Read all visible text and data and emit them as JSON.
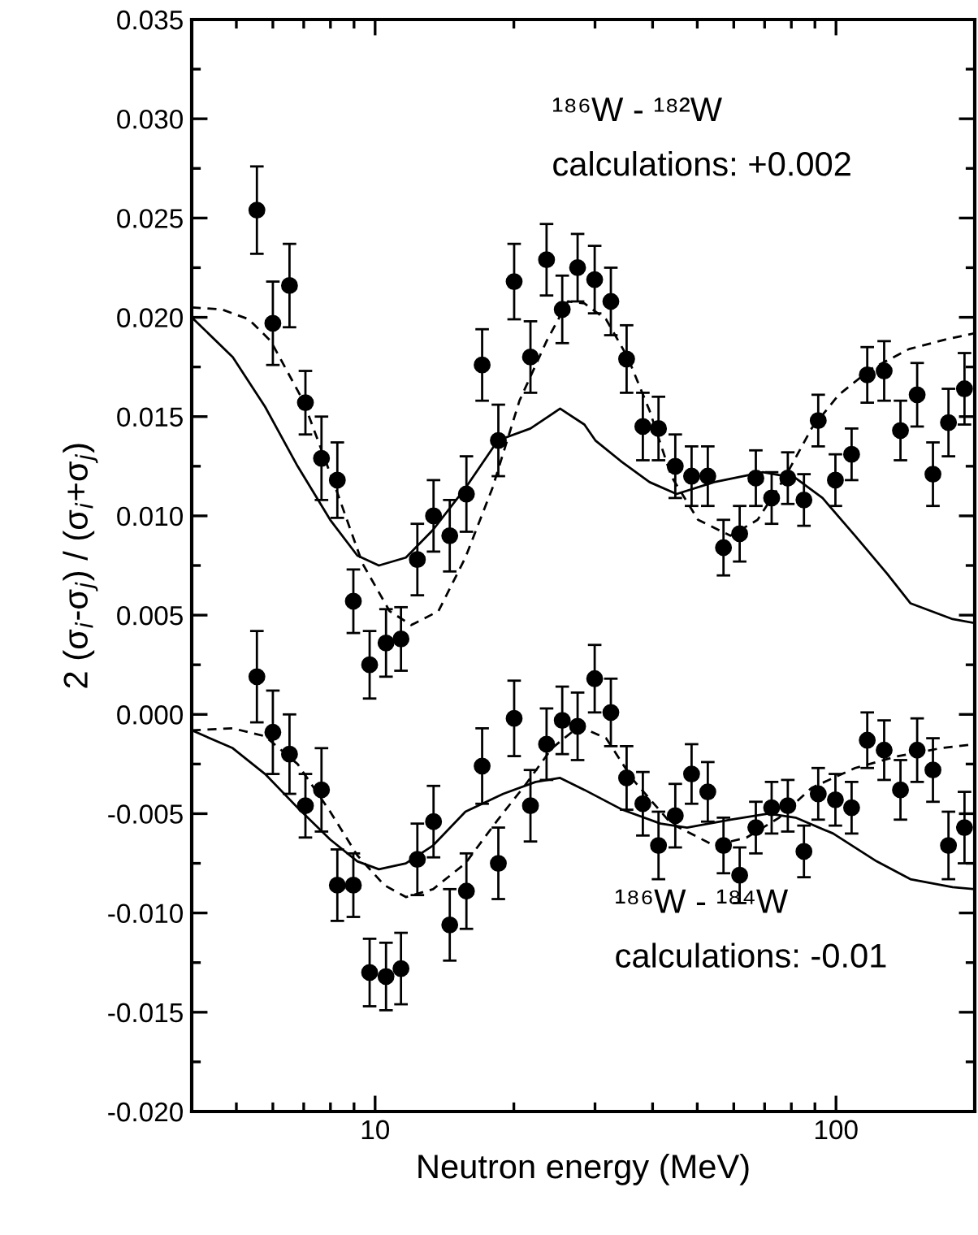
{
  "chart_data": {
    "type": "scatter",
    "xlabel": "Neutron energy (MeV)",
    "ylabel": "2 (σ$_{i}$-σ$_{j}$) / (σ$_{i}$+σ$_{j}$)",
    "log": "x",
    "xlim": [
      4,
      200
    ],
    "xticks": [
      10,
      100
    ],
    "ylim": [
      -0.02,
      0.035
    ],
    "yticks": [
      {
        "value": -0.02,
        "label": "-0.020"
      },
      {
        "value": -0.015,
        "label": "-0.015"
      },
      {
        "value": -0.01,
        "label": "-0.010"
      },
      {
        "value": -0.005,
        "label": "-0.005"
      },
      {
        "value": 0,
        "label": "0.000"
      },
      {
        "value": 0.005,
        "label": "0.005"
      },
      {
        "value": 0.01,
        "label": "0.010"
      },
      {
        "value": 0.015,
        "label": "0.015"
      },
      {
        "value": 0.02,
        "label": "0.020"
      },
      {
        "value": 0.025,
        "label": "0.025"
      },
      {
        "value": 0.03,
        "label": "0.030"
      },
      {
        "value": 0.035,
        "label": "0.035"
      }
    ],
    "grid": false,
    "annotations": [
      "¹⁸⁶W - ¹⁸²W",
      "calculations: +0.002",
      "¹⁸⁶W - ¹⁸⁴W",
      "calculations: -0.01"
    ],
    "series": [
      {
        "marker": "circle",
        "color": "#000000",
        "x": [
          5.54,
          6.0,
          6.52,
          7.06,
          7.65,
          8.28,
          8.97,
          9.73,
          10.56,
          11.38,
          12.35,
          13.39,
          14.52,
          15.78,
          17.07,
          18.51,
          20.03,
          21.73,
          23.55,
          25.47,
          27.5,
          29.95,
          32.47,
          35.13,
          38.1,
          41.2,
          44.8,
          48.6,
          52.7,
          57.0,
          61.8,
          67.0,
          72.5,
          78.6,
          85.2,
          91.5,
          99.7,
          108.1,
          116.9,
          127.2,
          138,
          150,
          162.3,
          175.4,
          190
        ],
        "values": [
          0.0254,
          0.0197,
          0.0216,
          0.0157,
          0.0129,
          0.0118,
          0.0057,
          0.0025,
          0.0036,
          0.0038,
          0.0078,
          0.01,
          0.009,
          0.0111,
          0.0176,
          0.0138,
          0.0218,
          0.018,
          0.0229,
          0.0204,
          0.0225,
          0.0219,
          0.0208,
          0.0179,
          0.0145,
          0.0144,
          0.0125,
          0.012,
          0.012,
          0.0084,
          0.0091,
          0.0119,
          0.0109,
          0.0119,
          0.0108,
          0.0148,
          0.0118,
          0.0131,
          0.0171,
          0.0173,
          0.0143,
          0.0161,
          0.0121,
          0.0147,
          0.0164
        ],
        "errors": [
          0.0022,
          0.0021,
          0.0021,
          0.0016,
          0.0021,
          0.0019,
          0.0016,
          0.0017,
          0.0017,
          0.0016,
          0.0018,
          0.0018,
          0.0018,
          0.0019,
          0.0018,
          0.0018,
          0.0019,
          0.0018,
          0.0018,
          0.0017,
          0.0017,
          0.0017,
          0.0017,
          0.0017,
          0.0017,
          0.0016,
          0.0016,
          0.0015,
          0.0015,
          0.0014,
          0.0014,
          0.0014,
          0.0013,
          0.0013,
          0.0013,
          0.0013,
          0.0013,
          0.0013,
          0.0014,
          0.0015,
          0.0015,
          0.0016,
          0.0016,
          0.0017,
          0.0018
        ]
      },
      {
        "marker": "circle",
        "color": "#000000",
        "x": [
          5.54,
          6.0,
          6.52,
          7.06,
          7.65,
          8.28,
          8.97,
          9.73,
          10.56,
          11.38,
          12.35,
          13.39,
          14.52,
          15.78,
          17.07,
          18.51,
          20.03,
          21.73,
          23.55,
          25.47,
          27.5,
          29.95,
          32.47,
          35.13,
          38.1,
          41.2,
          44.8,
          48.6,
          52.7,
          57.0,
          61.8,
          67.0,
          72.5,
          78.6,
          85.2,
          91.5,
          99.7,
          108.1,
          116.9,
          127.2,
          138,
          150,
          162.3,
          175.4,
          190
        ],
        "values": [
          0.0019,
          -0.0009,
          -0.002,
          -0.0046,
          -0.0038,
          -0.0086,
          -0.0086,
          -0.013,
          -0.0132,
          -0.0128,
          -0.0073,
          -0.0054,
          -0.0106,
          -0.0089,
          -0.0026,
          -0.0075,
          -0.0002,
          -0.0046,
          -0.0015,
          -0.0003,
          -0.0006,
          0.0018,
          0.0001,
          -0.0032,
          -0.0045,
          -0.0066,
          -0.0051,
          -0.003,
          -0.0039,
          -0.0066,
          -0.0081,
          -0.0057,
          -0.0047,
          -0.0046,
          -0.0069,
          -0.004,
          -0.0043,
          -0.0047,
          -0.0013,
          -0.0018,
          -0.0038,
          -0.0018,
          -0.0028,
          -0.0066,
          -0.0057
        ],
        "errors": [
          0.0023,
          0.0021,
          0.002,
          0.0016,
          0.0021,
          0.0018,
          0.0016,
          0.0017,
          0.0017,
          0.0018,
          0.0018,
          0.0018,
          0.0018,
          0.0019,
          0.0019,
          0.0018,
          0.0019,
          0.0018,
          0.0018,
          0.0017,
          0.0017,
          0.0017,
          0.0017,
          0.0016,
          0.0016,
          0.0017,
          0.0016,
          0.0015,
          0.0015,
          0.0014,
          0.0014,
          0.0013,
          0.0013,
          0.0013,
          0.0013,
          0.0013,
          0.0013,
          0.0013,
          0.0014,
          0.0015,
          0.0015,
          0.0016,
          0.0016,
          0.0017,
          0.0018
        ]
      },
      {
        "type": "line",
        "line_style": "solid",
        "color": "#000000",
        "x": [
          4,
          4.91,
          5.77,
          6.79,
          7.99,
          9.15,
          10.19,
          11.66,
          13.36,
          15.7,
          18.47,
          21.73,
          25.2,
          28.45,
          30.05,
          34.37,
          39.4,
          45.1,
          54.4,
          69.4,
          81.7,
          93.5,
          110,
          129,
          145,
          179,
          200
        ],
        "values": [
          0.02,
          0.018,
          0.0155,
          0.0125,
          0.0098,
          0.008,
          0.0075,
          0.0079,
          0.0093,
          0.0114,
          0.0138,
          0.0144,
          0.0154,
          0.0146,
          0.0138,
          0.0127,
          0.0117,
          0.0111,
          0.0117,
          0.0122,
          0.0119,
          0.0109,
          0.009,
          0.0071,
          0.0056,
          0.0048,
          0.0046
        ]
      },
      {
        "type": "line",
        "line_style": "dashed",
        "color": "#000000",
        "x": [
          4,
          4.65,
          5.32,
          5.94,
          6.98,
          8.21,
          9.39,
          10.75,
          11.98,
          13.72,
          15.7,
          17.97,
          20.57,
          23.55,
          26.2,
          28.45,
          31.7,
          35.3,
          39.4,
          43.9,
          50.2,
          59,
          67.6,
          77.3,
          88.5,
          101.4,
          119.2,
          144,
          174,
          200
        ],
        "values": [
          0.0205,
          0.0204,
          0.0199,
          0.0188,
          0.0158,
          0.0114,
          0.0076,
          0.0052,
          0.0045,
          0.0052,
          0.0079,
          0.0114,
          0.0158,
          0.0188,
          0.0208,
          0.0207,
          0.0199,
          0.018,
          0.0153,
          0.012,
          0.0098,
          0.009,
          0.0098,
          0.0119,
          0.0144,
          0.0161,
          0.0174,
          0.0184,
          0.0189,
          0.0192
        ]
      },
      {
        "type": "line",
        "line_style": "solid",
        "color": "#000000",
        "x": [
          4,
          4.91,
          5.77,
          6.79,
          7.99,
          9.15,
          10.19,
          11.66,
          13.36,
          15.7,
          18.97,
          22.3,
          25.2,
          28.45,
          34.37,
          41.6,
          47.5,
          59,
          71.3,
          81.7,
          98.6,
          122.5,
          145,
          179,
          200
        ],
        "values": [
          -0.0008,
          -0.0017,
          -0.003,
          -0.0047,
          -0.0063,
          -0.0074,
          -0.0078,
          -0.0075,
          -0.0066,
          -0.0049,
          -0.004,
          -0.0034,
          -0.0032,
          -0.0038,
          -0.0048,
          -0.0055,
          -0.0057,
          -0.0053,
          -0.005,
          -0.0052,
          -0.006,
          -0.0074,
          -0.0083,
          -0.0087,
          -0.0088
        ]
      },
      {
        "type": "line",
        "line_style": "dashed",
        "color": "#000000",
        "x": [
          4,
          4.91,
          5.77,
          6.79,
          7.99,
          9.15,
          10.47,
          11.66,
          13.36,
          15.7,
          18.47,
          21.1,
          24.2,
          27.7,
          31.7,
          36.3,
          43.9,
          54.4,
          64.0,
          75.3,
          88.5,
          110,
          136.4,
          169,
          200
        ],
        "values": [
          -0.0008,
          -0.0007,
          -0.0011,
          -0.0025,
          -0.0049,
          -0.0071,
          -0.0086,
          -0.0092,
          -0.0088,
          -0.0075,
          -0.0053,
          -0.0036,
          -0.0017,
          -0.0006,
          -0.0012,
          -0.0033,
          -0.0055,
          -0.0066,
          -0.0062,
          -0.0052,
          -0.0037,
          -0.0027,
          -0.0021,
          -0.0017,
          -0.0015
        ]
      }
    ]
  }
}
